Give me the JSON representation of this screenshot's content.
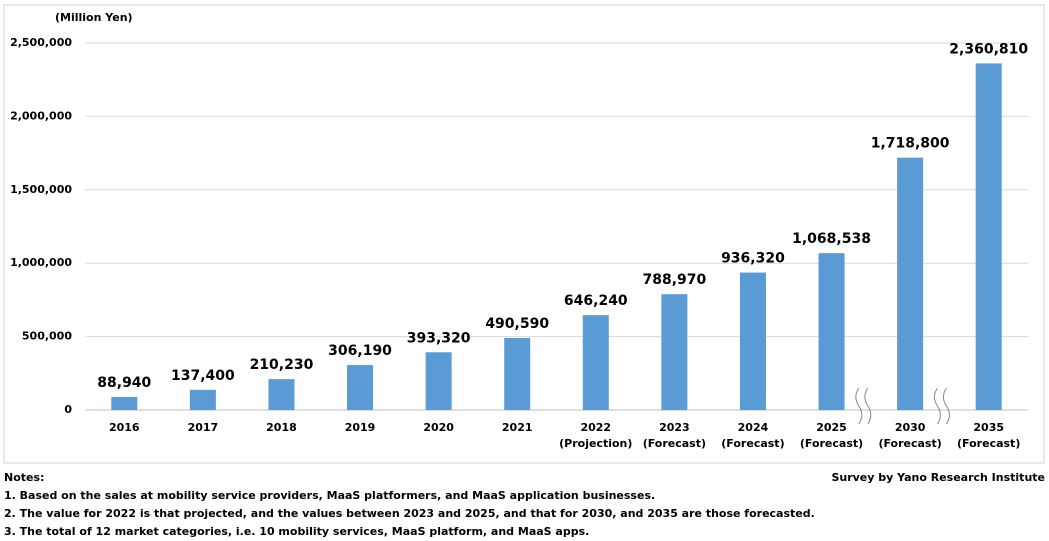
{
  "chart_data": {
    "type": "bar",
    "y_axis_label": "(Million Yen)",
    "categories": [
      "2016",
      "2017",
      "2018",
      "2019",
      "2020",
      "2021",
      "2022\n(Projection)",
      "2023\n(Forecast)",
      "2024\n(Forecast)",
      "2025\n(Forecast)",
      "2030\n(Forecast)",
      "2035\n(Forecast)"
    ],
    "values": [
      88940,
      137400,
      210230,
      306190,
      393320,
      490590,
      646240,
      788970,
      936320,
      1068538,
      1718800,
      2360810
    ],
    "value_labels": [
      "88,940",
      "137,400",
      "210,230",
      "306,190",
      "393,320",
      "490,590",
      "646,240",
      "788,970",
      "936,320",
      "1,068,538",
      "1,718,800",
      "2,360,810"
    ],
    "color": "#5b9bd5",
    "ylim": [
      0,
      2500000
    ],
    "yticks": [
      0,
      {
        "value": 500000,
        "label": "500,000"
      },
      {
        "value": 1000000,
        "label": "1,000,000"
      },
      {
        "value": 1500000,
        "label": "1,500,000"
      },
      {
        "value": 2000000,
        "label": "2,000,000"
      },
      {
        "value": 2500000,
        "label": "2,500,000"
      }
    ],
    "grid": true
  },
  "notes": {
    "title": "Notes:",
    "items": [
      "1. Based on the sales at mobility service providers, MaaS platformers, and MaaS application businesses.",
      "2. The value for 2022 is that projected, and the values between 2023 and 2025, and that for 2030, and 2035 are those forecasted.",
      "3. The total of 12 market categories, i.e. 10 mobility services, MaaS platform, and MaaS apps."
    ]
  },
  "source": "Survey by Yano Research Institute"
}
